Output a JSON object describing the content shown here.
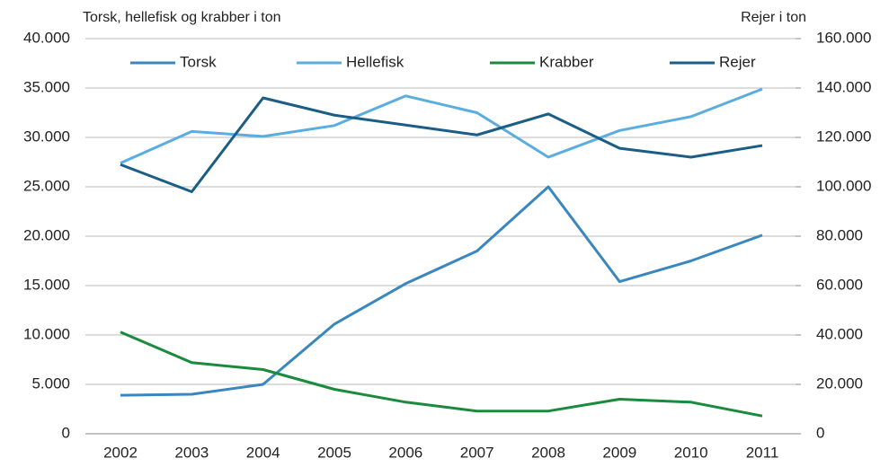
{
  "chart_data": {
    "type": "line",
    "y_label": "Torsk, hellefisk og krabber i ton",
    "y2_label": "Rejer i ton",
    "categories": [
      "2002",
      "2003",
      "2004",
      "2005",
      "2006",
      "2007",
      "2008",
      "2009",
      "2010",
      "2011"
    ],
    "series": [
      {
        "name": "Torsk",
        "color": "#3a87c0",
        "values": [
          3900,
          4000,
          5000,
          11100,
          15200,
          18500,
          25000,
          15400,
          17500,
          20100
        ]
      },
      {
        "name": "Hellefisk",
        "color": "#5aade0",
        "values": [
          27400,
          30600,
          30100,
          31200,
          34200,
          32500,
          28000,
          30700,
          32100,
          34900
        ]
      },
      {
        "name": "Krabber",
        "color": "#1a8a3c",
        "values": [
          10300,
          7200,
          6500,
          4500,
          3200,
          2300,
          2300,
          3500,
          3200,
          1800
        ]
      },
      {
        "name": "Rejer",
        "color": "#1b5e85",
        "axis": "y2",
        "values": [
          109000,
          98000,
          136000,
          129000,
          125000,
          121000,
          129500,
          115600,
          112000,
          116700
        ]
      }
    ],
    "ylim": [
      0,
      40000
    ],
    "yticks": [
      0,
      {
        "value": 5000,
        "label": "5.000"
      },
      {
        "value": 10000,
        "label": "10.000"
      },
      {
        "value": 15000,
        "label": "15.000"
      },
      {
        "value": 20000,
        "label": "20.000"
      },
      {
        "value": 25000,
        "label": "25.000"
      },
      {
        "value": 30000,
        "label": "30.000"
      },
      {
        "value": 35000,
        "label": "35.000"
      },
      {
        "value": 40000,
        "label": "40.000"
      }
    ],
    "y2lim": [
      0,
      160000
    ],
    "y2ticks": [
      0,
      {
        "value": 20000,
        "label": "20.000"
      },
      {
        "value": 40000,
        "label": "40.000"
      },
      {
        "value": 60000,
        "label": "60.000"
      },
      {
        "value": 80000,
        "label": "80.000"
      },
      {
        "value": 100000,
        "label": "100.000"
      },
      {
        "value": 120000,
        "label": "120.000"
      },
      {
        "value": 140000,
        "label": "140.000"
      },
      {
        "value": 160000,
        "label": "160.000"
      }
    ],
    "grid": true,
    "legend": "top"
  }
}
